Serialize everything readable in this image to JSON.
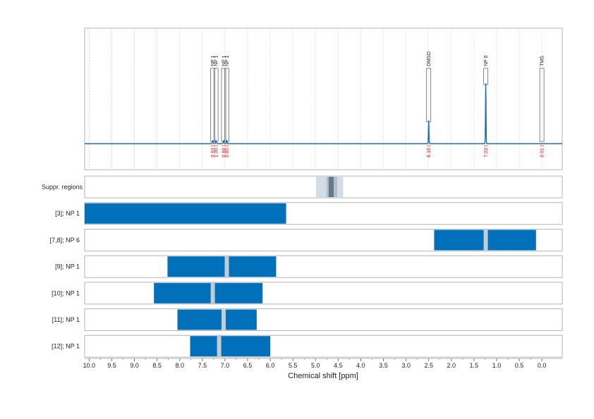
{
  "chart_data": {
    "type": "nmr-spectrum-with-range-bars",
    "xlabel": "Chemical shift [ppm]",
    "xlim": [
      10.1,
      -0.45
    ],
    "x_ticks": [
      "10.0",
      "9.5",
      "9.0",
      "8.5",
      "8.0",
      "7.5",
      "7.0",
      "6.5",
      "6.0",
      "5.5",
      "5.0",
      "4.5",
      "4.0",
      "3.5",
      "3.0",
      "2.5",
      "2.0",
      "1.5",
      "1.0",
      "0.5",
      "0.0"
    ],
    "grid": "vertical dotted",
    "colors": {
      "spectrum": "#1f6fb2",
      "bar": "#0070bb",
      "bar_marker": "#c0ccd6",
      "integral": "#dd1111",
      "suppr_light": "#d3dde5",
      "suppr_dark": "#687a88",
      "frame": "#b5b5b5"
    },
    "spectrum": {
      "baseline": 0,
      "peaks": [
        {
          "ppm": 7.27,
          "height": 0.04,
          "label": "NP 1",
          "integral": "0.93"
        },
        {
          "ppm": 7.2,
          "height": 0.04,
          "label": "NP 1",
          "integral": "1.00"
        },
        {
          "ppm": 7.03,
          "height": 0.04,
          "label": "NP 1",
          "integral": "0.89"
        },
        {
          "ppm": 6.96,
          "height": 0.04,
          "label": "NP 1",
          "integral": "0.85"
        },
        {
          "ppm": 2.5,
          "height": 0.3,
          "label": "DMSO",
          "integral": "6.16"
        },
        {
          "ppm": 1.24,
          "height": 0.78,
          "label": "NP 6",
          "integral": "7.03"
        },
        {
          "ppm": 0.0,
          "height": 0.0,
          "label": "TMS",
          "integral": "0.01"
        }
      ]
    },
    "suppressed_regions": {
      "label": "Suppr. regions",
      "light": [
        4.99,
        4.39
      ],
      "mid": [
        4.76,
        4.52
      ],
      "dark": [
        4.71,
        4.6
      ]
    },
    "rows": [
      {
        "label": "[3]; NP 1",
        "start": 10.1,
        "end": 5.65,
        "marker": null
      },
      {
        "label": "[7,8]; NP 6",
        "start": 2.38,
        "end": 0.13,
        "marker": 1.24
      },
      {
        "label": "[9]; NP 1",
        "start": 8.27,
        "end": 5.87,
        "marker": 6.96
      },
      {
        "label": "[10]; NP 1",
        "start": 8.57,
        "end": 6.17,
        "marker": 7.27
      },
      {
        "label": "[11]; NP 1",
        "start": 8.05,
        "end": 6.3,
        "marker": 7.03
      },
      {
        "label": "[12]; NP 1",
        "start": 7.77,
        "end": 6.0,
        "marker": 7.13
      }
    ]
  }
}
